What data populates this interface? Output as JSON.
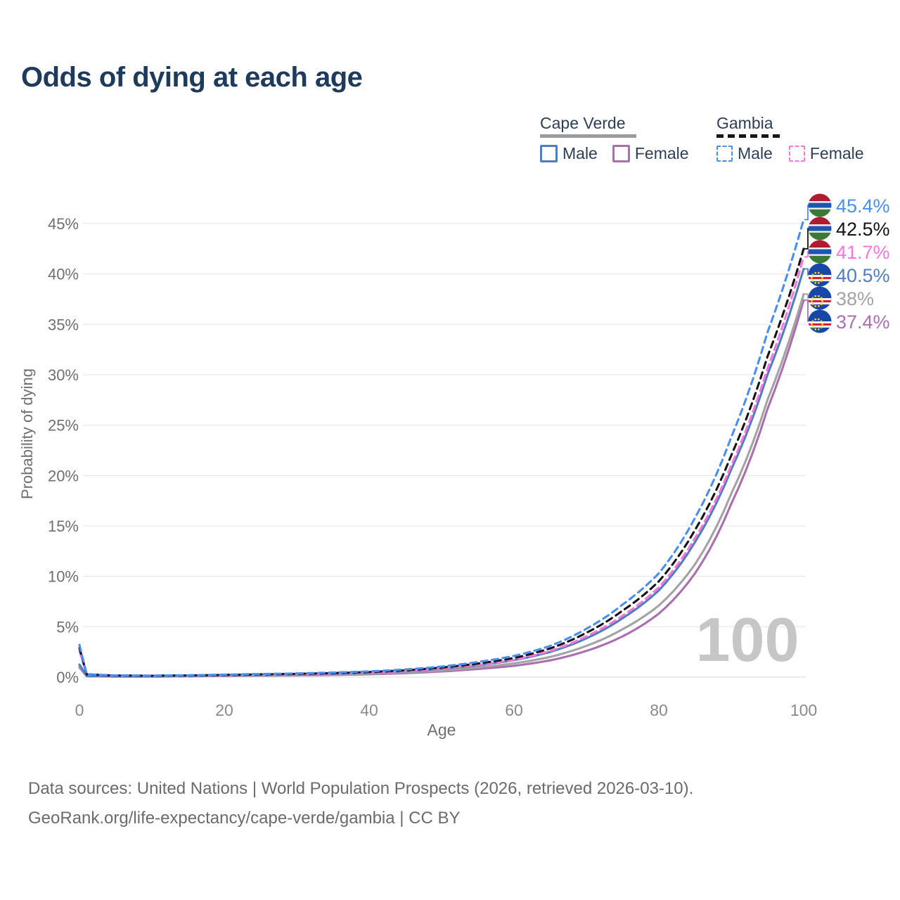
{
  "title": "Odds of dying at each age",
  "watermark": "100",
  "footer": {
    "line1": "Data sources: United Nations | World Population Prospects (2026, retrieved 2026-03-10).",
    "line2": "GeoRank.org/life-expectancy/cape-verde/gambia | CC BY"
  },
  "colors": {
    "title": "#1e3a5c",
    "grid": "#ebebeb",
    "axis_text": "#6f6f6f",
    "tick_text": "#8a8a8a",
    "watermark": "#c6c6c6",
    "gambia_male": "#4a8ff0",
    "gambia_all": "#141414",
    "gambia_female": "#fd74da",
    "cape_verde_male": "#4d7fc0",
    "cape_verde_all": "#a3a3a3",
    "cape_verde_female": "#ab6fb0"
  },
  "legend": {
    "groups": [
      {
        "label": "Cape Verde",
        "style": "solid",
        "rule_color": "#9b9b9b",
        "items": [
          {
            "label": "Male",
            "color": "#4d7fc0"
          },
          {
            "label": "Female",
            "color": "#ab6fb0"
          }
        ]
      },
      {
        "label": "Gambia",
        "style": "dashed",
        "rule_color": "#161616",
        "items": [
          {
            "label": "Male",
            "color": "#4a8ff0"
          },
          {
            "label": "Female",
            "color": "#fd74da"
          }
        ]
      }
    ]
  },
  "chart_data": {
    "type": "line",
    "title": "Odds of dying at each age",
    "xlabel": "Age",
    "ylabel": "Probability of dying",
    "xlim": [
      0,
      100
    ],
    "ylim_percent": [
      0,
      47
    ],
    "grid": true,
    "legend_position": "top-right",
    "x_ticks": [
      {
        "value": 0,
        "label": "0"
      },
      {
        "value": 20,
        "label": "20"
      },
      {
        "value": 40,
        "label": "40"
      },
      {
        "value": 60,
        "label": "60"
      },
      {
        "value": 80,
        "label": "80"
      },
      {
        "value": 100,
        "label": "100"
      }
    ],
    "y_ticks": [
      {
        "value": 0,
        "label": "0%"
      },
      {
        "value": 5,
        "label": "5%"
      },
      {
        "value": 10,
        "label": "10%"
      },
      {
        "value": 15,
        "label": "15%"
      },
      {
        "value": 20,
        "label": "20%"
      },
      {
        "value": 25,
        "label": "25%"
      },
      {
        "value": 30,
        "label": "30%"
      },
      {
        "value": 35,
        "label": "35%"
      },
      {
        "value": 40,
        "label": "40%"
      },
      {
        "value": 45,
        "label": "45%"
      }
    ],
    "ages": [
      0,
      1,
      5,
      10,
      15,
      20,
      25,
      30,
      35,
      40,
      45,
      50,
      55,
      60,
      65,
      70,
      75,
      80,
      85,
      90,
      95,
      100
    ],
    "series": [
      {
        "name": "Gambia Male",
        "country": "Gambia",
        "sex": "male",
        "color": "#4a8ff0",
        "dash": true,
        "flag": "gambia",
        "end_label": "45.4%",
        "values_percent": [
          3.2,
          0.3,
          0.17,
          0.15,
          0.19,
          0.25,
          0.31,
          0.37,
          0.45,
          0.57,
          0.76,
          1.05,
          1.5,
          2.1,
          3.1,
          4.8,
          7.2,
          10.3,
          15.8,
          23.8,
          34.2,
          45.4
        ]
      },
      {
        "name": "Gambia",
        "country": "Gambia",
        "sex": "all",
        "color": "#141414",
        "dash": true,
        "flag": "gambia",
        "end_label": "42.5%",
        "values_percent": [
          2.9,
          0.27,
          0.16,
          0.14,
          0.17,
          0.22,
          0.27,
          0.33,
          0.4,
          0.51,
          0.68,
          0.95,
          1.35,
          1.9,
          2.85,
          4.4,
          6.6,
          9.5,
          14.6,
          22.0,
          31.8,
          42.5
        ]
      },
      {
        "name": "Gambia Female",
        "country": "Gambia",
        "sex": "female",
        "color": "#fd74da",
        "dash": true,
        "flag": "gambia",
        "end_label": "41.7%",
        "values_percent": [
          2.6,
          0.25,
          0.15,
          0.13,
          0.15,
          0.19,
          0.24,
          0.29,
          0.36,
          0.46,
          0.61,
          0.86,
          1.22,
          1.72,
          2.6,
          4.05,
          6.1,
          8.9,
          13.8,
          21.0,
          30.6,
          41.7
        ]
      },
      {
        "name": "Cape Verde Male",
        "country": "Cape Verde",
        "sex": "male",
        "color": "#4d7fc0",
        "dash": false,
        "flag": "cape-verde",
        "end_label": "40.5%",
        "values_percent": [
          1.25,
          0.11,
          0.07,
          0.07,
          0.11,
          0.17,
          0.22,
          0.27,
          0.33,
          0.43,
          0.58,
          0.82,
          1.18,
          1.68,
          2.5,
          3.85,
          5.85,
          8.6,
          13.4,
          20.6,
          30.0,
          40.5
        ]
      },
      {
        "name": "Cape Verde",
        "country": "Cape Verde",
        "sex": "all",
        "color": "#a3a3a3",
        "dash": false,
        "flag": "cape-verde",
        "end_label": "38%",
        "values_percent": [
          1.05,
          0.1,
          0.06,
          0.06,
          0.09,
          0.13,
          0.17,
          0.21,
          0.26,
          0.34,
          0.47,
          0.67,
          0.96,
          1.36,
          2.0,
          3.1,
          4.75,
          7.1,
          11.2,
          18.2,
          27.5,
          38.0
        ]
      },
      {
        "name": "Cape Verde Female",
        "country": "Cape Verde",
        "sex": "female",
        "color": "#ab6fb0",
        "dash": false,
        "flag": "cape-verde",
        "end_label": "37.4%",
        "values_percent": [
          0.95,
          0.09,
          0.055,
          0.055,
          0.08,
          0.11,
          0.14,
          0.17,
          0.21,
          0.28,
          0.39,
          0.56,
          0.81,
          1.12,
          1.66,
          2.6,
          4.05,
          6.3,
          10.3,
          17.2,
          26.6,
          37.4
        ]
      }
    ]
  }
}
